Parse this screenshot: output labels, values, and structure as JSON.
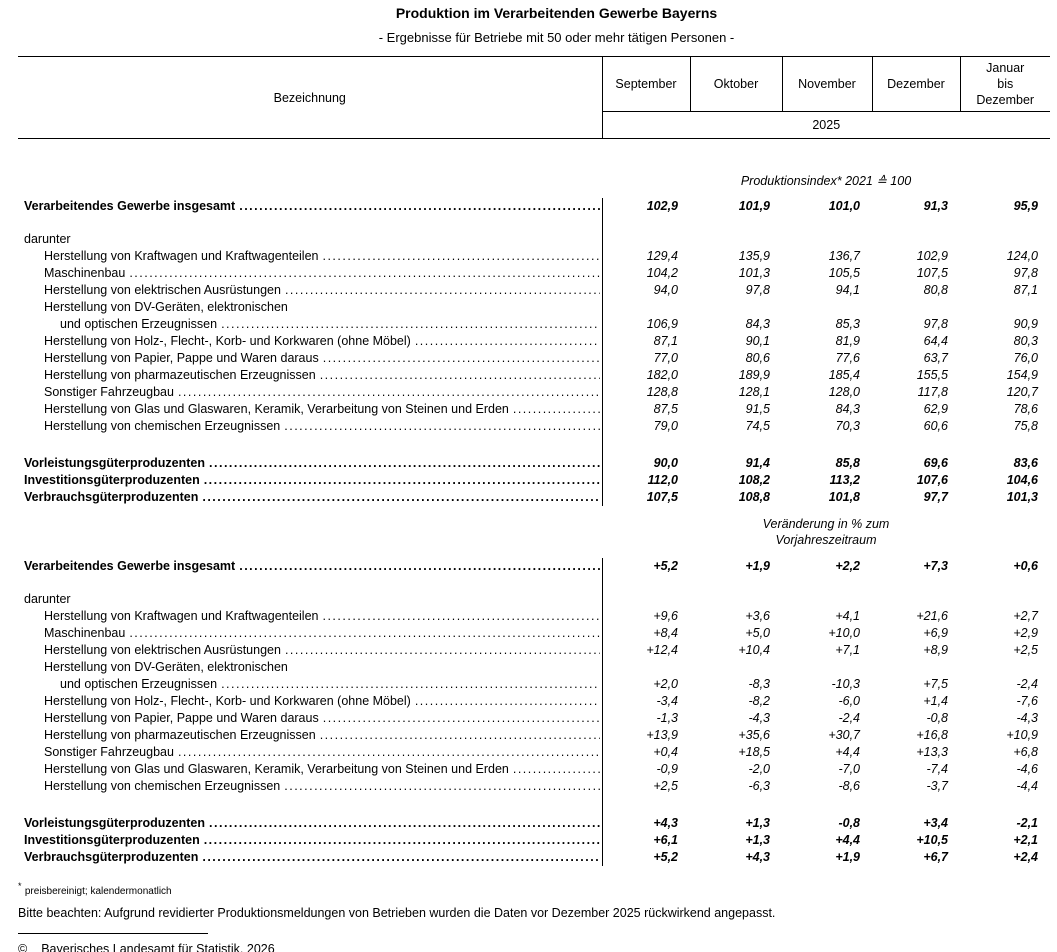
{
  "title": "Produktion im Verarbeitenden Gewerbe Bayerns",
  "subtitle": "- Ergebnisse für Betriebe mit 50 oder mehr tätigen Personen -",
  "header": {
    "label_col": "Bezeichnung",
    "months": [
      "September",
      "Oktober",
      "November",
      "Dezember",
      "Januar\nbis\nDezember"
    ],
    "year": "2025"
  },
  "s1": {
    "header": "Produktionsindex* 2021 ≙ 100",
    "total": {
      "label": "Verarbeitendes Gewerbe insgesamt",
      "values": [
        "102,9",
        "101,9",
        "101,0",
        "91,3",
        "95,9"
      ]
    },
    "group_label": "darunter",
    "rows": [
      {
        "label": "Herstellung von Kraftwagen und Kraftwagenteilen",
        "values": [
          "129,4",
          "135,9",
          "136,7",
          "102,9",
          "124,0"
        ]
      },
      {
        "label": "Maschinenbau",
        "values": [
          "104,2",
          "101,3",
          "105,5",
          "107,5",
          "97,8"
        ]
      },
      {
        "label": "Herstellung von elektrischen Ausrüstungen",
        "values": [
          "94,0",
          "97,8",
          "94,1",
          "80,8",
          "87,1"
        ]
      },
      {
        "label": "Herstellung von DV-Geräten, elektronischen",
        "label2": "und optischen Erzeugnissen",
        "values": [
          "106,9",
          "84,3",
          "85,3",
          "97,8",
          "90,9"
        ]
      },
      {
        "label": "Herstellung von Holz-, Flecht-, Korb- und Korkwaren (ohne Möbel)",
        "values": [
          "87,1",
          "90,1",
          "81,9",
          "64,4",
          "80,3"
        ]
      },
      {
        "label": "Herstellung von Papier, Pappe und Waren daraus",
        "values": [
          "77,0",
          "80,6",
          "77,6",
          "63,7",
          "76,0"
        ]
      },
      {
        "label": "Herstellung von pharmazeutischen Erzeugnissen",
        "values": [
          "182,0",
          "189,9",
          "185,4",
          "155,5",
          "154,9"
        ]
      },
      {
        "label": "Sonstiger Fahrzeugbau",
        "values": [
          "128,8",
          "128,1",
          "128,0",
          "117,8",
          "120,7"
        ]
      },
      {
        "label": "Herstellung von Glas und Glaswaren, Keramik, Verarbeitung von Steinen und Erden",
        "values": [
          "87,5",
          "91,5",
          "84,3",
          "62,9",
          "78,6"
        ]
      },
      {
        "label": "Herstellung von chemischen Erzeugnissen",
        "values": [
          "79,0",
          "74,5",
          "70,3",
          "60,6",
          "75,8"
        ]
      }
    ],
    "totals": [
      {
        "label": "Vorleistungsgüterproduzenten",
        "values": [
          "90,0",
          "91,4",
          "85,8",
          "69,6",
          "83,6"
        ]
      },
      {
        "label": "Investitionsgüterproduzenten",
        "values": [
          "112,0",
          "108,2",
          "113,2",
          "107,6",
          "104,6"
        ]
      },
      {
        "label": "Verbrauchsgüterproduzenten",
        "values": [
          "107,5",
          "108,8",
          "101,8",
          "97,7",
          "101,3"
        ]
      }
    ]
  },
  "s2": {
    "header_line1": "Veränderung in % zum",
    "header_line2": "Vorjahreszeitraum",
    "total": {
      "label": "Verarbeitendes Gewerbe insgesamt",
      "values": [
        "+5,2",
        "+1,9",
        "+2,2",
        "+7,3",
        "+0,6"
      ]
    },
    "group_label": "darunter",
    "rows": [
      {
        "label": "Herstellung von Kraftwagen und Kraftwagenteilen",
        "values": [
          "+9,6",
          "+3,6",
          "+4,1",
          "+21,6",
          "+2,7"
        ]
      },
      {
        "label": "Maschinenbau",
        "values": [
          "+8,4",
          "+5,0",
          "+10,0",
          "+6,9",
          "+2,9"
        ]
      },
      {
        "label": "Herstellung von elektrischen Ausrüstungen",
        "values": [
          "+12,4",
          "+10,4",
          "+7,1",
          "+8,9",
          "+2,5"
        ]
      },
      {
        "label": "Herstellung von DV-Geräten, elektronischen",
        "label2": "und optischen Erzeugnissen",
        "values": [
          "+2,0",
          "-8,3",
          "-10,3",
          "+7,5",
          "-2,4"
        ]
      },
      {
        "label": "Herstellung von Holz-, Flecht-, Korb- und Korkwaren (ohne Möbel)",
        "values": [
          "-3,4",
          "-8,2",
          "-6,0",
          "+1,4",
          "-7,6"
        ]
      },
      {
        "label": "Herstellung von Papier, Pappe und Waren daraus",
        "values": [
          "-1,3",
          "-4,3",
          "-2,4",
          "-0,8",
          "-4,3"
        ]
      },
      {
        "label": "Herstellung von pharmazeutischen Erzeugnissen",
        "values": [
          "+13,9",
          "+35,6",
          "+30,7",
          "+16,8",
          "+10,9"
        ]
      },
      {
        "label": "Sonstiger Fahrzeugbau",
        "values": [
          "+0,4",
          "+18,5",
          "+4,4",
          "+13,3",
          "+6,8"
        ]
      },
      {
        "label": "Herstellung von Glas und Glaswaren, Keramik, Verarbeitung von Steinen und Erden",
        "values": [
          "-0,9",
          "-2,0",
          "-7,0",
          "-7,4",
          "-4,6"
        ]
      },
      {
        "label": "Herstellung von chemischen Erzeugnissen",
        "values": [
          "+2,5",
          "-6,3",
          "-8,6",
          "-3,7",
          "-4,4"
        ]
      }
    ],
    "totals": [
      {
        "label": "Vorleistungsgüterproduzenten",
        "values": [
          "+4,3",
          "+1,3",
          "-0,8",
          "+3,4",
          "-2,1"
        ]
      },
      {
        "label": "Investitionsgüterproduzenten",
        "values": [
          "+6,1",
          "+1,3",
          "+4,4",
          "+10,5",
          "+2,1"
        ]
      },
      {
        "label": "Verbrauchsgüterproduzenten",
        "values": [
          "+5,2",
          "+4,3",
          "+1,9",
          "+6,7",
          "+2,4"
        ]
      }
    ]
  },
  "footnote": {
    "star_mark": "*",
    "star_text": "preisbereinigt; kalendermonatlich",
    "note": "Bitte beachten: Aufgrund revidierter Produktionsmeldungen von Betrieben wurden die Daten vor Dezember 2025 rückwirkend angepasst.",
    "copyright_symbol": "©",
    "copyright_text": "Bayerisches Landesamt für Statistik, 2026"
  }
}
